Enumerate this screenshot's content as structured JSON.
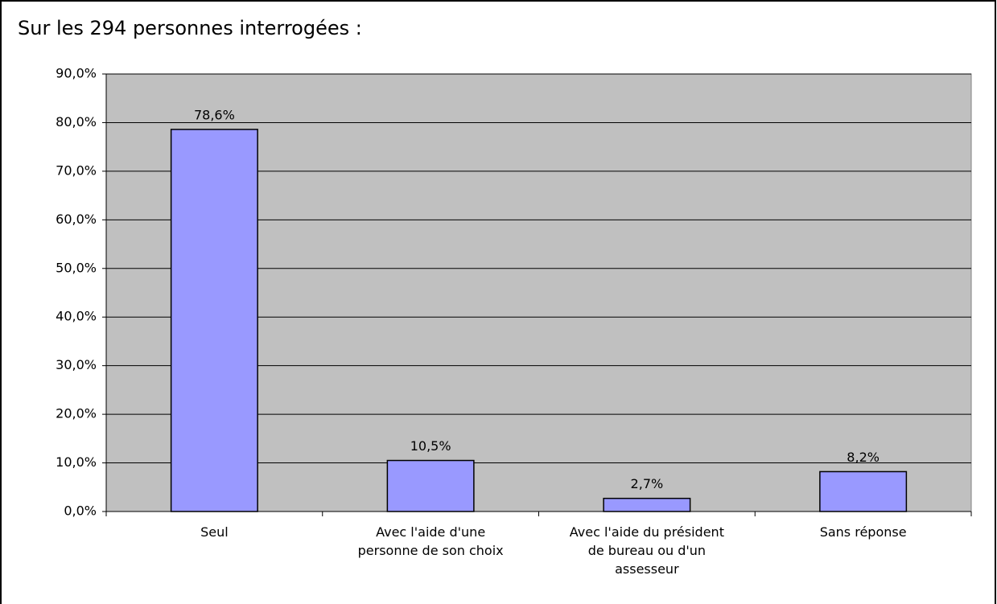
{
  "chart_data": {
    "type": "bar",
    "title": "Sur les 294 personnes interrogées :",
    "categories": [
      "Seul",
      "Avec l'aide d'une\npersonne de son choix",
      "Avec l'aide du président\nde bureau ou d'un\nassesseur",
      "Sans réponse"
    ],
    "values": [
      78.6,
      10.5,
      2.7,
      8.2
    ],
    "value_labels": [
      "78,6%",
      "10,5%",
      "2,7%",
      "8,2%"
    ],
    "color": "#9999ff",
    "ylim": [
      0,
      90
    ],
    "yticks": [
      {
        "value": 0,
        "label": "0,0%"
      },
      {
        "value": 10,
        "label": "10,0%"
      },
      {
        "value": 20,
        "label": "20,0%"
      },
      {
        "value": 30,
        "label": "30,0%"
      },
      {
        "value": 40,
        "label": "40,0%"
      },
      {
        "value": 50,
        "label": "50,0%"
      },
      {
        "value": 60,
        "label": "60,0%"
      },
      {
        "value": 70,
        "label": "70,0%"
      },
      {
        "value": 80,
        "label": "80,0%"
      },
      {
        "value": 90,
        "label": "90,0%"
      }
    ],
    "grid": true
  }
}
